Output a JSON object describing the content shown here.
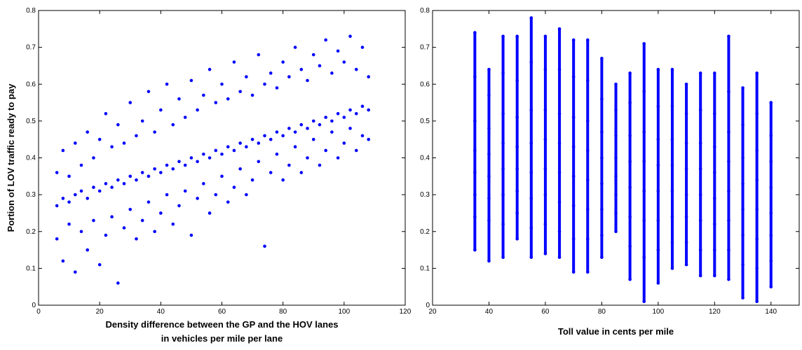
{
  "chart_data": [
    {
      "type": "scatter",
      "ylabel": "Portion of LOV traffic ready to pay",
      "xlabel": [
        "Density difference between the GP and the HOV lanes",
        "in vehicles per mile per lane"
      ],
      "color": "#0000ff",
      "xlim": [
        0,
        120
      ],
      "xticks": [
        0,
        20,
        40,
        60,
        80,
        100,
        120
      ],
      "ylim": [
        0,
        0.8
      ],
      "yticks": [
        0,
        0.1,
        0.2,
        0.3,
        0.4,
        0.5,
        0.6,
        0.7,
        0.8
      ],
      "x": [
        6,
        8,
        10,
        12,
        14,
        16,
        18,
        20,
        22,
        24,
        26,
        28,
        30,
        32,
        34,
        36,
        38,
        40,
        42,
        44,
        46,
        48,
        50,
        52,
        54,
        56,
        58,
        60,
        62,
        64,
        66,
        68,
        70,
        72,
        74,
        76,
        78,
        80,
        82,
        84,
        86,
        88,
        90,
        92,
        94,
        96,
        98,
        100,
        102,
        104,
        106,
        108,
        6,
        8,
        10,
        12,
        14,
        16,
        18,
        20,
        22,
        24,
        26,
        28,
        30,
        32,
        34,
        36,
        38,
        40,
        42,
        44,
        46,
        48,
        50,
        52,
        54,
        56,
        58,
        60,
        62,
        64,
        66,
        68,
        70,
        72,
        74,
        76,
        78,
        80,
        82,
        84,
        86,
        88,
        90,
        92,
        94,
        96,
        98,
        100,
        102,
        104,
        106,
        108,
        6,
        8,
        10,
        12,
        14,
        16,
        18,
        20,
        22,
        24,
        26,
        28,
        30,
        32,
        34,
        36,
        38,
        40,
        42,
        44,
        46,
        48,
        50,
        52,
        54,
        56,
        58,
        60,
        62,
        64,
        66,
        68,
        70,
        72,
        74,
        76,
        78,
        80,
        82,
        84,
        86,
        88,
        90,
        92,
        94,
        96,
        98,
        100,
        102,
        104,
        106,
        108
      ],
      "y": [
        0.36,
        0.42,
        0.35,
        0.44,
        0.38,
        0.47,
        0.4,
        0.45,
        0.52,
        0.43,
        0.49,
        0.44,
        0.55,
        0.46,
        0.5,
        0.58,
        0.47,
        0.53,
        0.6,
        0.49,
        0.56,
        0.51,
        0.61,
        0.53,
        0.57,
        0.64,
        0.55,
        0.6,
        0.56,
        0.66,
        0.58,
        0.62,
        0.57,
        0.68,
        0.6,
        0.63,
        0.59,
        0.66,
        0.62,
        0.7,
        0.64,
        0.61,
        0.68,
        0.65,
        0.72,
        0.63,
        0.69,
        0.66,
        0.73,
        0.64,
        0.7,
        0.62,
        0.18,
        0.12,
        0.22,
        0.09,
        0.2,
        0.15,
        0.23,
        0.11,
        0.19,
        0.24,
        0.06,
        0.21,
        0.26,
        0.18,
        0.23,
        0.28,
        0.2,
        0.25,
        0.3,
        0.22,
        0.27,
        0.31,
        0.19,
        0.29,
        0.33,
        0.25,
        0.3,
        0.35,
        0.28,
        0.32,
        0.37,
        0.3,
        0.34,
        0.39,
        0.16,
        0.36,
        0.41,
        0.34,
        0.38,
        0.43,
        0.36,
        0.4,
        0.45,
        0.38,
        0.42,
        0.47,
        0.4,
        0.44,
        0.48,
        0.42,
        0.46,
        0.45,
        0.27,
        0.29,
        0.28,
        0.3,
        0.31,
        0.29,
        0.32,
        0.31,
        0.33,
        0.32,
        0.34,
        0.33,
        0.35,
        0.34,
        0.36,
        0.35,
        0.37,
        0.36,
        0.38,
        0.37,
        0.39,
        0.38,
        0.4,
        0.39,
        0.41,
        0.4,
        0.42,
        0.41,
        0.43,
        0.42,
        0.44,
        0.43,
        0.45,
        0.44,
        0.46,
        0.45,
        0.47,
        0.46,
        0.48,
        0.47,
        0.49,
        0.48,
        0.5,
        0.49,
        0.51,
        0.5,
        0.52,
        0.51,
        0.53,
        0.52,
        0.54,
        0.53
      ]
    },
    {
      "type": "scatter",
      "xlabel": [
        "Toll value in cents per mile"
      ],
      "color": "#0000ff",
      "xlim": [
        20,
        150
      ],
      "xticks": [
        20,
        40,
        60,
        80,
        100,
        120,
        140
      ],
      "ylim": [
        0,
        0.8
      ],
      "yticks": [
        0,
        0.1,
        0.2,
        0.3,
        0.4,
        0.5,
        0.6,
        0.7,
        0.8
      ],
      "x": [
        35,
        35,
        35,
        35,
        35,
        35,
        35,
        35,
        40,
        40,
        40,
        40,
        40,
        40,
        40,
        40,
        45,
        45,
        45,
        45,
        45,
        45,
        45,
        45,
        50,
        50,
        50,
        50,
        50,
        50,
        50,
        50,
        55,
        55,
        55,
        55,
        55,
        55,
        55,
        55,
        60,
        60,
        60,
        60,
        60,
        60,
        60,
        60,
        65,
        65,
        65,
        65,
        65,
        65,
        65,
        65,
        70,
        70,
        70,
        70,
        70,
        70,
        70,
        70,
        75,
        75,
        75,
        75,
        75,
        75,
        75,
        75,
        80,
        80,
        80,
        80,
        80,
        80,
        80,
        80,
        85,
        85,
        85,
        85,
        85,
        85,
        85,
        85,
        90,
        90,
        90,
        90,
        90,
        90,
        90,
        90,
        95,
        95,
        95,
        95,
        95,
        95,
        95,
        95,
        100,
        100,
        100,
        100,
        100,
        100,
        100,
        100,
        105,
        105,
        105,
        105,
        105,
        105,
        105,
        105,
        110,
        110,
        110,
        110,
        110,
        110,
        110,
        110,
        115,
        115,
        115,
        115,
        115,
        115,
        115,
        115,
        120,
        120,
        120,
        120,
        120,
        120,
        120,
        120,
        125,
        125,
        125,
        125,
        125,
        125,
        125,
        125,
        130,
        130,
        130,
        130,
        130,
        130,
        130,
        130,
        135,
        135,
        135,
        135,
        135,
        135,
        135,
        135,
        140,
        140,
        140,
        140,
        140,
        140,
        140,
        140
      ],
      "y": [
        0.15,
        0.24,
        0.3,
        0.36,
        0.42,
        0.5,
        0.62,
        0.74,
        0.12,
        0.23,
        0.29,
        0.35,
        0.41,
        0.48,
        0.57,
        0.64,
        0.13,
        0.22,
        0.3,
        0.37,
        0.44,
        0.52,
        0.63,
        0.73,
        0.18,
        0.25,
        0.31,
        0.37,
        0.43,
        0.51,
        0.61,
        0.73,
        0.13,
        0.21,
        0.29,
        0.36,
        0.44,
        0.53,
        0.66,
        0.78,
        0.14,
        0.22,
        0.3,
        0.37,
        0.45,
        0.53,
        0.64,
        0.73,
        0.13,
        0.2,
        0.28,
        0.36,
        0.44,
        0.52,
        0.64,
        0.75,
        0.09,
        0.18,
        0.27,
        0.35,
        0.43,
        0.51,
        0.62,
        0.72,
        0.09,
        0.18,
        0.26,
        0.34,
        0.42,
        0.5,
        0.61,
        0.72,
        0.13,
        0.19,
        0.26,
        0.33,
        0.4,
        0.47,
        0.56,
        0.67,
        0.2,
        0.25,
        0.3,
        0.35,
        0.4,
        0.46,
        0.53,
        0.6,
        0.07,
        0.16,
        0.24,
        0.32,
        0.39,
        0.46,
        0.55,
        0.63,
        0.01,
        0.13,
        0.23,
        0.31,
        0.39,
        0.47,
        0.58,
        0.71,
        0.06,
        0.15,
        0.23,
        0.31,
        0.38,
        0.45,
        0.54,
        0.64,
        0.1,
        0.17,
        0.24,
        0.31,
        0.38,
        0.45,
        0.54,
        0.64,
        0.11,
        0.17,
        0.24,
        0.3,
        0.37,
        0.44,
        0.52,
        0.6,
        0.08,
        0.15,
        0.23,
        0.3,
        0.37,
        0.44,
        0.53,
        0.63,
        0.08,
        0.15,
        0.22,
        0.29,
        0.36,
        0.43,
        0.52,
        0.63,
        0.07,
        0.15,
        0.23,
        0.31,
        0.39,
        0.47,
        0.58,
        0.73,
        0.02,
        0.11,
        0.19,
        0.26,
        0.33,
        0.4,
        0.49,
        0.59,
        0.01,
        0.1,
        0.18,
        0.26,
        0.34,
        0.42,
        0.52,
        0.63,
        0.05,
        0.12,
        0.19,
        0.25,
        0.32,
        0.39,
        0.46,
        0.55
      ]
    }
  ]
}
